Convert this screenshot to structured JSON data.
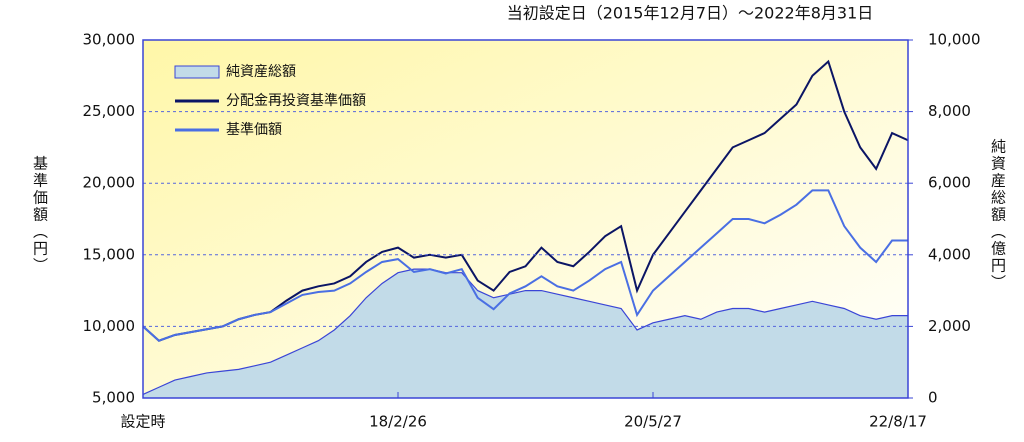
{
  "chart_data": {
    "type": "line",
    "title": "当初設定日（2015年12月7日）～2022年8月31日",
    "y_label": "基準価額（円）",
    "y2_label": "純資産総額（億円）",
    "categories": [
      "設定時",
      null,
      null,
      null,
      null,
      null,
      null,
      null,
      null,
      null,
      null,
      null,
      null,
      null,
      null,
      null,
      "18/2/26",
      null,
      null,
      null,
      null,
      null,
      null,
      null,
      null,
      null,
      null,
      null,
      null,
      null,
      null,
      null,
      "20/5/27",
      null,
      null,
      null,
      null,
      null,
      null,
      null,
      null,
      null,
      null,
      null,
      null,
      null,
      null,
      null,
      "22/8/17"
    ],
    "series": [
      {
        "name": "純資産総額",
        "type": "area",
        "axis": "y2",
        "color": "#c2dbe8",
        "values": [
          100,
          300,
          500,
          600,
          700,
          750,
          800,
          900,
          1000,
          1200,
          1400,
          1600,
          1900,
          2300,
          2800,
          3200,
          3500,
          3600,
          3600,
          3500,
          3500,
          3000,
          2800,
          2900,
          3000,
          3000,
          2900,
          2800,
          2700,
          2600,
          2500,
          1900,
          2100,
          2200,
          2300,
          2200,
          2400,
          2500,
          2500,
          2400,
          2500,
          2600,
          2700,
          2600,
          2500,
          2300,
          2200,
          2300,
          2300
        ]
      },
      {
        "name": "分配金再投資基準価額",
        "color": "#0b1565",
        "values": [
          10000,
          9000,
          9400,
          9600,
          9800,
          10000,
          10500,
          10800,
          11000,
          11800,
          12500,
          12800,
          13000,
          13500,
          14500,
          15200,
          15500,
          14800,
          15000,
          14800,
          15000,
          13200,
          12500,
          13800,
          14200,
          15500,
          14500,
          14200,
          15200,
          16300,
          17000,
          12500,
          15000,
          16500,
          18000,
          19500,
          21000,
          22500,
          23000,
          23500,
          24500,
          25500,
          27500,
          28500,
          25000,
          22500,
          21000,
          23500,
          23000
        ]
      },
      {
        "name": "基準価額",
        "color": "#4a6fe3",
        "values": [
          10000,
          9000,
          9400,
          9600,
          9800,
          10000,
          10500,
          10800,
          11000,
          11600,
          12200,
          12400,
          12500,
          13000,
          13800,
          14500,
          14700,
          13800,
          14000,
          13700,
          14000,
          12000,
          11200,
          12300,
          12800,
          13500,
          12800,
          12500,
          13200,
          14000,
          14500,
          10800,
          12500,
          13500,
          14500,
          15500,
          16500,
          17500,
          17500,
          17200,
          17800,
          18500,
          19500,
          19500,
          17000,
          15500,
          14500,
          16000,
          16000
        ]
      }
    ],
    "ylim": [
      5000,
      30000
    ],
    "yticks": [
      {
        "value": 5000,
        "label": "5,000"
      },
      {
        "value": 10000,
        "label": "10,000"
      },
      {
        "value": 15000,
        "label": "15,000"
      },
      {
        "value": 20000,
        "label": "20,000"
      },
      {
        "value": 25000,
        "label": "25,000"
      },
      {
        "value": 30000,
        "label": "30,000"
      }
    ],
    "y2lim": [
      0,
      10000
    ],
    "y2ticks": [
      0,
      {
        "value": 2000,
        "label": "2,000"
      },
      {
        "value": 4000,
        "label": "4,000"
      },
      {
        "value": 6000,
        "label": "6,000"
      },
      {
        "value": 8000,
        "label": "8,000"
      },
      {
        "value": 10000,
        "label": "10,000"
      }
    ],
    "grid": true
  }
}
